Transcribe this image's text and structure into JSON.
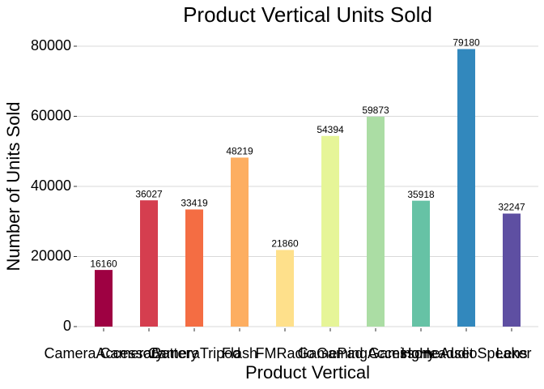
{
  "chart_data": {
    "type": "bar",
    "title": "Product Vertical Units Sold",
    "x_label": "Product Vertical",
    "y_label": "Number of Units Sold",
    "categories": [
      "CameraAccessory",
      "CameraBattery",
      "CameraTripod",
      "Flash",
      "FMRadio",
      "GamePad",
      "GamingAccessory",
      "GamingHeadset",
      "HomeAudioSpeaker",
      "Lens"
    ],
    "values": [
      16160,
      36027,
      33419,
      48219,
      21860,
      54394,
      59873,
      35918,
      79180,
      32247
    ],
    "colors": [
      "#9E0142",
      "#D53E4F",
      "#F46D43",
      "#FDAE61",
      "#FEE08B",
      "#E6F598",
      "#ABDDA4",
      "#66C2A5",
      "#3288BD",
      "#5E4FA2"
    ],
    "ylim": [
      0,
      80000
    ],
    "yticks": [
      0,
      20000,
      40000,
      60000,
      80000
    ],
    "grid": true
  }
}
